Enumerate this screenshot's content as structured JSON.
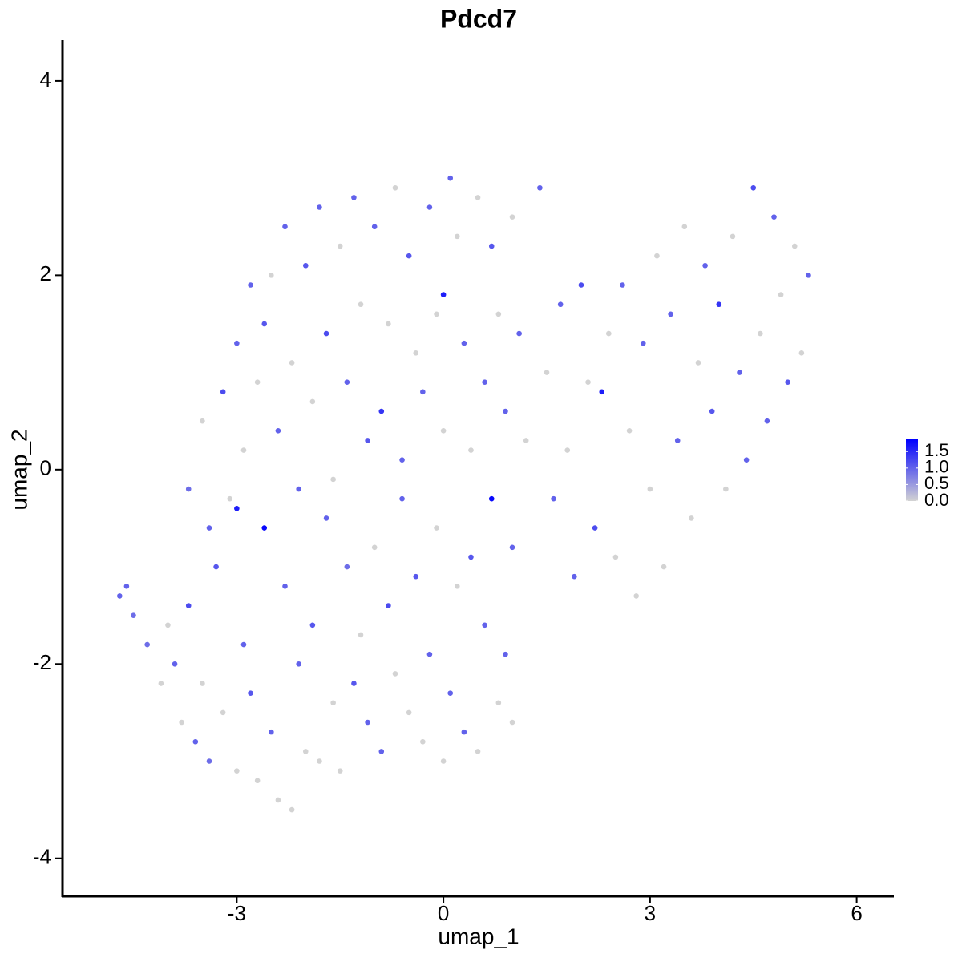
{
  "chart_data": {
    "type": "scatter",
    "title": "Pdcd7",
    "xlabel": "umap_1",
    "ylabel": "umap_2",
    "xlim": [
      -5.53,
      6.54
    ],
    "ylim": [
      -4.39,
      4.42
    ],
    "xticks": [
      -3,
      0,
      3,
      6
    ],
    "yticks": [
      -4,
      -2,
      0,
      2,
      4
    ],
    "color_low": "#d3d3d3",
    "color_high": "#0000ff",
    "color_lim": [
      0,
      1.87
    ],
    "color_ticks": [
      {
        "value": 0,
        "label": "0.0"
      },
      0.5,
      {
        "value": 1,
        "label": "1.0"
      },
      1.5
    ],
    "x": [
      -4.7,
      -4.6,
      -4.5,
      -4.3,
      -4.1,
      -4.0,
      -3.9,
      -3.8,
      -3.7,
      -3.6,
      -3.5,
      -3.4,
      -3.3,
      -3.2,
      -3.1,
      -3.0,
      -2.9,
      -2.8,
      -2.7,
      -2.6,
      -2.5,
      -2.4,
      -2.3,
      -2.2,
      -2.1,
      -2.0,
      -1.9,
      -1.8,
      -1.7,
      -1.6,
      -1.5,
      -1.4,
      -1.3,
      -1.2,
      -1.1,
      -1.0,
      -0.9,
      -0.8,
      -0.7,
      -0.6,
      -0.5,
      -0.4,
      -0.3,
      -0.2,
      -0.1,
      0.0,
      0.1,
      0.2,
      0.3,
      0.4,
      0.5,
      0.6,
      0.7,
      0.8,
      0.9,
      1.0,
      1.0,
      -3.7,
      -3.5,
      -3.4,
      -3.2,
      -3.0,
      -3.0,
      -2.9,
      -2.8,
      -2.7,
      -2.6,
      -2.5,
      -2.4,
      -2.3,
      -2.2,
      -2.1,
      -2.0,
      -1.9,
      -1.8,
      -1.7,
      -1.6,
      -1.5,
      -1.4,
      -1.3,
      -1.2,
      -1.1,
      -1.0,
      -0.9,
      -0.8,
      -0.7,
      -0.6,
      -0.5,
      -0.4,
      -0.3,
      -0.2,
      -0.1,
      0.0,
      0.0,
      0.1,
      0.2,
      0.3,
      0.4,
      0.5,
      0.6,
      0.7,
      0.8,
      0.9,
      1.0,
      1.1,
      1.2,
      1.4,
      1.5,
      1.6,
      1.7,
      1.8,
      1.9,
      2.0,
      2.1,
      2.2,
      2.3,
      2.4,
      2.5,
      2.6,
      2.7,
      2.8,
      2.9,
      3.0,
      3.1,
      3.2,
      3.3,
      3.4,
      3.5,
      3.6,
      3.7,
      3.8,
      3.9,
      4.0,
      4.1,
      4.2,
      4.3,
      4.4,
      4.5,
      4.6,
      4.7,
      4.8,
      4.9,
      5.0,
      5.1,
      5.2,
      5.3
    ],
    "y": [
      -1.3,
      -1.2,
      -1.5,
      -1.8,
      -2.2,
      -1.6,
      -2.0,
      -2.6,
      -1.4,
      -2.8,
      -2.2,
      -3.0,
      -1.0,
      -2.5,
      -0.3,
      -3.1,
      -1.8,
      -2.3,
      -3.2,
      -0.6,
      -2.7,
      -3.4,
      -1.2,
      -3.5,
      -2.0,
      -2.9,
      -1.6,
      -3.0,
      -0.5,
      -2.4,
      -3.1,
      -1.0,
      -2.2,
      -1.7,
      -2.6,
      -0.8,
      -2.9,
      -1.4,
      -2.1,
      -0.3,
      -2.5,
      -1.1,
      -2.8,
      -1.9,
      -0.6,
      -3.0,
      -2.3,
      -1.2,
      -2.7,
      -0.9,
      -2.9,
      -1.6,
      -0.3,
      -2.4,
      -1.9,
      -2.6,
      -0.8,
      -0.2,
      0.5,
      -0.6,
      0.8,
      -0.4,
      1.3,
      0.2,
      1.9,
      0.9,
      1.5,
      2.0,
      0.4,
      2.5,
      1.1,
      -0.2,
      2.1,
      0.7,
      2.7,
      1.4,
      -0.1,
      2.3,
      0.9,
      2.8,
      1.7,
      0.3,
      2.5,
      0.6,
      1.5,
      2.9,
      0.1,
      2.2,
      1.2,
      0.8,
      2.7,
      1.6,
      0.4,
      1.8,
      3.0,
      2.4,
      1.3,
      0.2,
      2.8,
      0.9,
      2.3,
      1.6,
      0.6,
      2.6,
      1.4,
      0.3,
      2.9,
      1.0,
      -0.3,
      1.7,
      0.2,
      -1.1,
      1.9,
      0.9,
      -0.6,
      0.8,
      1.4,
      -0.9,
      1.9,
      0.4,
      -1.3,
      1.3,
      -0.2,
      2.2,
      -1.0,
      1.6,
      0.3,
      2.5,
      -0.5,
      1.1,
      2.1,
      0.6,
      1.7,
      -0.2,
      2.4,
      1.0,
      0.1,
      2.9,
      1.4,
      0.5,
      2.6,
      1.8,
      0.9,
      2.3,
      1.2,
      2.0
    ],
    "expression": [
      1.0,
      1.0,
      0.9,
      0.9,
      0,
      0,
      1.0,
      0,
      1.2,
      1.0,
      0,
      0.9,
      1.1,
      0,
      0,
      0,
      1.0,
      1.1,
      0,
      1.8,
      1.0,
      0,
      1.0,
      0,
      1.0,
      0,
      1.1,
      0,
      1.0,
      0,
      0,
      0.9,
      1.1,
      0,
      1.0,
      0,
      1.0,
      1.2,
      0,
      1.0,
      0,
      1.1,
      0,
      1.0,
      0,
      0,
      1.0,
      0,
      1.0,
      1.1,
      0,
      1.0,
      1.8,
      0,
      1.0,
      0,
      1.0,
      0.9,
      0,
      1.0,
      1.2,
      1.6,
      1.0,
      0,
      1.0,
      0,
      1.1,
      0,
      1.0,
      1.0,
      0,
      1.0,
      1.1,
      0,
      1.0,
      1.2,
      0,
      0,
      1.0,
      1.0,
      0,
      1.1,
      1.0,
      1.4,
      0,
      0,
      1.0,
      1.1,
      0,
      1.0,
      1.0,
      0,
      0,
      1.6,
      1.0,
      0,
      1.0,
      0,
      0,
      1.0,
      1.1,
      0,
      1.0,
      0,
      1.0,
      0,
      1.0,
      0,
      1.0,
      1.0,
      0,
      1.0,
      1.2,
      0,
      1.2,
      1.6,
      0,
      0,
      1.0,
      0,
      0,
      1.0,
      0,
      0,
      0,
      1.0,
      1.0,
      0,
      0,
      0,
      1.0,
      1.1,
      1.4,
      0,
      0,
      1.0,
      1.0,
      1.2,
      0,
      1.0,
      1.0,
      0,
      1.1,
      0,
      0,
      1.0
    ]
  }
}
